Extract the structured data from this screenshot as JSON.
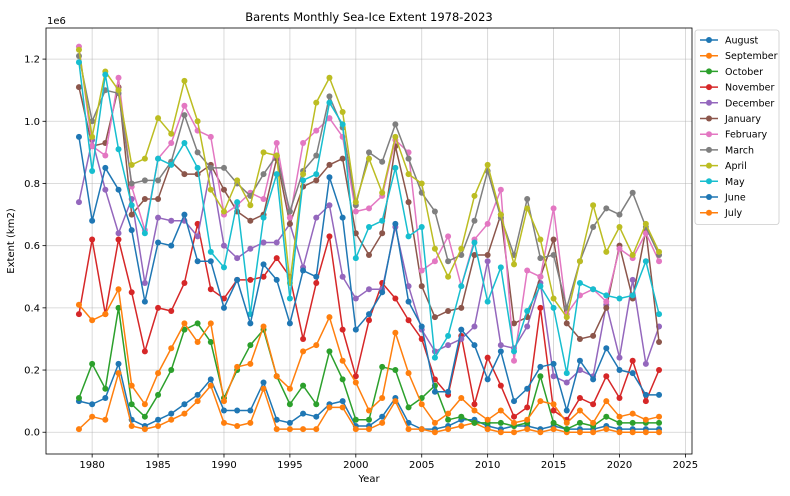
{
  "chart_data": {
    "type": "line",
    "title": "Barents Monthly Sea-Ice Extent 1978-2023",
    "xlabel": "Year",
    "ylabel": "Extent (km2)",
    "y_offset_label": "1e6",
    "xlim": [
      1976.5,
      2025.5
    ],
    "ylim": [
      -0.07,
      1.3
    ],
    "x_ticks": [
      1980,
      1985,
      1990,
      1995,
      2000,
      2005,
      2010,
      2015,
      2020,
      2025
    ],
    "y_ticks": [
      0.0,
      0.2,
      0.4,
      0.6,
      0.8,
      1.0,
      1.2
    ],
    "grid": true,
    "legend_position": "right",
    "x": [
      1979,
      1980,
      1981,
      1982,
      1983,
      1984,
      1985,
      1986,
      1987,
      1988,
      1989,
      1990,
      1991,
      1992,
      1993,
      1994,
      1995,
      1996,
      1997,
      1998,
      1999,
      2000,
      2001,
      2002,
      2003,
      2004,
      2005,
      2006,
      2007,
      2008,
      2009,
      2010,
      2011,
      2012,
      2013,
      2014,
      2015,
      2016,
      2017,
      2018,
      2019,
      2020,
      2021,
      2022,
      2023
    ],
    "series": [
      {
        "name": "August",
        "color": "#1f77b4",
        "values": [
          0.1,
          0.09,
          0.11,
          0.22,
          0.04,
          0.02,
          0.04,
          0.06,
          0.09,
          0.12,
          0.17,
          0.07,
          0.07,
          0.07,
          0.16,
          0.04,
          0.03,
          0.06,
          0.05,
          0.09,
          0.1,
          0.02,
          0.02,
          0.05,
          0.11,
          0.03,
          0.01,
          0.01,
          0.02,
          0.04,
          0.04,
          0.02,
          0.01,
          0.02,
          0.02,
          0.01,
          0.02,
          0.01,
          0.01,
          0.01,
          0.02,
          0.01,
          0.01,
          0.01,
          0.01
        ]
      },
      {
        "name": "September",
        "color": "#ff7f0e",
        "values": [
          0.01,
          0.05,
          0.04,
          0.19,
          0.02,
          0.01,
          0.02,
          0.04,
          0.06,
          0.1,
          0.15,
          0.03,
          0.02,
          0.03,
          0.14,
          0.01,
          0.01,
          0.01,
          0.01,
          0.08,
          0.08,
          0.01,
          0.01,
          0.03,
          0.1,
          0.01,
          0.01,
          0.0,
          0.01,
          0.02,
          0.03,
          0.01,
          0.0,
          0.0,
          0.01,
          0.0,
          0.01,
          0.0,
          0.0,
          0.0,
          0.01,
          0.0,
          0.0,
          0.0,
          0.0
        ]
      },
      {
        "name": "October",
        "color": "#2ca02c",
        "values": [
          0.11,
          0.22,
          0.14,
          0.4,
          0.09,
          0.05,
          0.12,
          0.2,
          0.33,
          0.35,
          0.29,
          0.11,
          0.2,
          0.28,
          0.33,
          0.18,
          0.09,
          0.15,
          0.09,
          0.26,
          0.17,
          0.04,
          0.04,
          0.21,
          0.2,
          0.08,
          0.11,
          0.15,
          0.04,
          0.05,
          0.03,
          0.03,
          0.03,
          0.02,
          0.03,
          0.18,
          0.03,
          0.01,
          0.03,
          0.02,
          0.05,
          0.03,
          0.03,
          0.03,
          0.03
        ]
      },
      {
        "name": "November",
        "color": "#d62728",
        "values": [
          0.38,
          0.62,
          0.38,
          0.62,
          0.45,
          0.26,
          0.4,
          0.39,
          0.48,
          0.67,
          0.46,
          0.43,
          0.49,
          0.49,
          0.5,
          0.56,
          0.5,
          0.3,
          0.48,
          0.63,
          0.33,
          0.18,
          0.36,
          0.48,
          0.43,
          0.36,
          0.3,
          0.17,
          0.12,
          0.31,
          0.09,
          0.24,
          0.15,
          0.05,
          0.08,
          0.4,
          0.07,
          0.04,
          0.11,
          0.09,
          0.18,
          0.11,
          0.23,
          0.1,
          0.2
        ]
      },
      {
        "name": "December",
        "color": "#9467bd",
        "values": [
          0.74,
          0.94,
          0.78,
          0.64,
          0.75,
          0.48,
          0.69,
          0.68,
          0.68,
          0.63,
          0.85,
          0.6,
          0.56,
          0.59,
          0.61,
          0.61,
          0.67,
          0.53,
          0.69,
          0.73,
          0.5,
          0.43,
          0.46,
          0.46,
          0.66,
          0.47,
          0.33,
          0.26,
          0.28,
          0.3,
          0.34,
          0.55,
          0.28,
          0.27,
          0.34,
          0.48,
          0.18,
          0.16,
          0.2,
          0.18,
          0.41,
          0.24,
          0.49,
          0.22,
          0.34
        ]
      },
      {
        "name": "January",
        "color": "#8c564b",
        "values": [
          1.11,
          0.92,
          0.93,
          1.11,
          0.7,
          0.75,
          0.75,
          0.87,
          0.83,
          0.83,
          0.86,
          0.78,
          0.71,
          0.68,
          0.7,
          0.88,
          0.67,
          0.79,
          0.81,
          0.86,
          0.88,
          0.64,
          0.57,
          0.64,
          0.92,
          0.74,
          0.47,
          0.37,
          0.39,
          0.4,
          0.57,
          0.57,
          0.7,
          0.35,
          0.37,
          0.5,
          0.62,
          0.35,
          0.3,
          0.31,
          0.4,
          0.6,
          0.43,
          0.65,
          0.29
        ]
      },
      {
        "name": "February",
        "color": "#e377c2",
        "values": [
          1.24,
          0.92,
          0.89,
          1.14,
          0.79,
          0.65,
          0.88,
          0.93,
          1.05,
          0.97,
          0.95,
          0.7,
          0.73,
          0.77,
          0.75,
          0.93,
          0.69,
          0.93,
          0.97,
          1.01,
          0.95,
          0.71,
          0.72,
          0.76,
          0.94,
          0.9,
          0.52,
          0.55,
          0.63,
          0.47,
          0.62,
          0.67,
          0.78,
          0.23,
          0.52,
          0.5,
          0.72,
          0.38,
          0.44,
          0.46,
          0.42,
          0.59,
          0.56,
          0.64,
          0.55
        ]
      },
      {
        "name": "March",
        "color": "#7f7f7f",
        "values": [
          1.21,
          1.0,
          1.1,
          1.09,
          0.8,
          0.81,
          0.81,
          0.87,
          1.02,
          0.9,
          0.85,
          0.85,
          0.8,
          0.76,
          0.83,
          0.89,
          0.71,
          0.84,
          0.89,
          1.08,
          0.98,
          0.73,
          0.9,
          0.87,
          0.99,
          0.88,
          0.77,
          0.71,
          0.55,
          0.57,
          0.68,
          0.84,
          0.69,
          0.57,
          0.75,
          0.56,
          0.57,
          0.4,
          0.55,
          0.66,
          0.72,
          0.7,
          0.77,
          0.66,
          0.57
        ]
      },
      {
        "name": "April",
        "color": "#bcbd22",
        "values": [
          1.23,
          0.95,
          1.16,
          1.1,
          0.86,
          0.88,
          1.01,
          0.96,
          1.13,
          1.0,
          0.78,
          0.71,
          0.81,
          0.73,
          0.9,
          0.89,
          0.48,
          0.83,
          1.06,
          1.14,
          1.03,
          0.74,
          0.88,
          0.77,
          0.95,
          0.83,
          0.8,
          0.59,
          0.5,
          0.59,
          0.76,
          0.86,
          0.7,
          0.54,
          0.72,
          0.62,
          0.43,
          0.37,
          0.55,
          0.73,
          0.58,
          0.66,
          0.57,
          0.67,
          0.58
        ]
      },
      {
        "name": "May",
        "color": "#17becf",
        "values": [
          1.19,
          0.84,
          1.15,
          0.91,
          0.73,
          0.64,
          0.88,
          0.86,
          0.93,
          0.85,
          0.58,
          0.53,
          0.74,
          0.38,
          0.69,
          0.83,
          0.43,
          0.81,
          0.83,
          1.06,
          0.99,
          0.56,
          0.66,
          0.68,
          0.85,
          0.63,
          0.66,
          0.24,
          0.31,
          0.47,
          0.61,
          0.42,
          0.53,
          0.26,
          0.39,
          0.47,
          0.4,
          0.19,
          0.48,
          0.46,
          0.44,
          0.43,
          0.44,
          0.55,
          0.38
        ]
      },
      {
        "name": "June",
        "color": "#1f77b4",
        "values": [
          0.95,
          0.68,
          0.85,
          0.78,
          0.65,
          0.42,
          0.61,
          0.6,
          0.7,
          0.55,
          0.55,
          0.4,
          0.49,
          0.35,
          0.54,
          0.49,
          0.35,
          0.52,
          0.5,
          0.82,
          0.69,
          0.33,
          0.38,
          0.45,
          0.67,
          0.42,
          0.34,
          0.13,
          0.13,
          0.33,
          0.28,
          0.17,
          0.26,
          0.1,
          0.14,
          0.21,
          0.22,
          0.07,
          0.23,
          0.17,
          0.27,
          0.2,
          0.19,
          0.12,
          0.12
        ]
      },
      {
        "name": "July",
        "color": "#ff7f0e",
        "values": [
          0.41,
          0.36,
          0.38,
          0.46,
          0.15,
          0.09,
          0.19,
          0.27,
          0.35,
          0.29,
          0.35,
          0.1,
          0.21,
          0.22,
          0.34,
          0.18,
          0.14,
          0.26,
          0.28,
          0.37,
          0.23,
          0.16,
          0.07,
          0.11,
          0.32,
          0.19,
          0.09,
          0.03,
          0.06,
          0.11,
          0.07,
          0.04,
          0.07,
          0.03,
          0.04,
          0.1,
          0.09,
          0.03,
          0.07,
          0.03,
          0.1,
          0.05,
          0.06,
          0.04,
          0.05
        ]
      }
    ]
  }
}
